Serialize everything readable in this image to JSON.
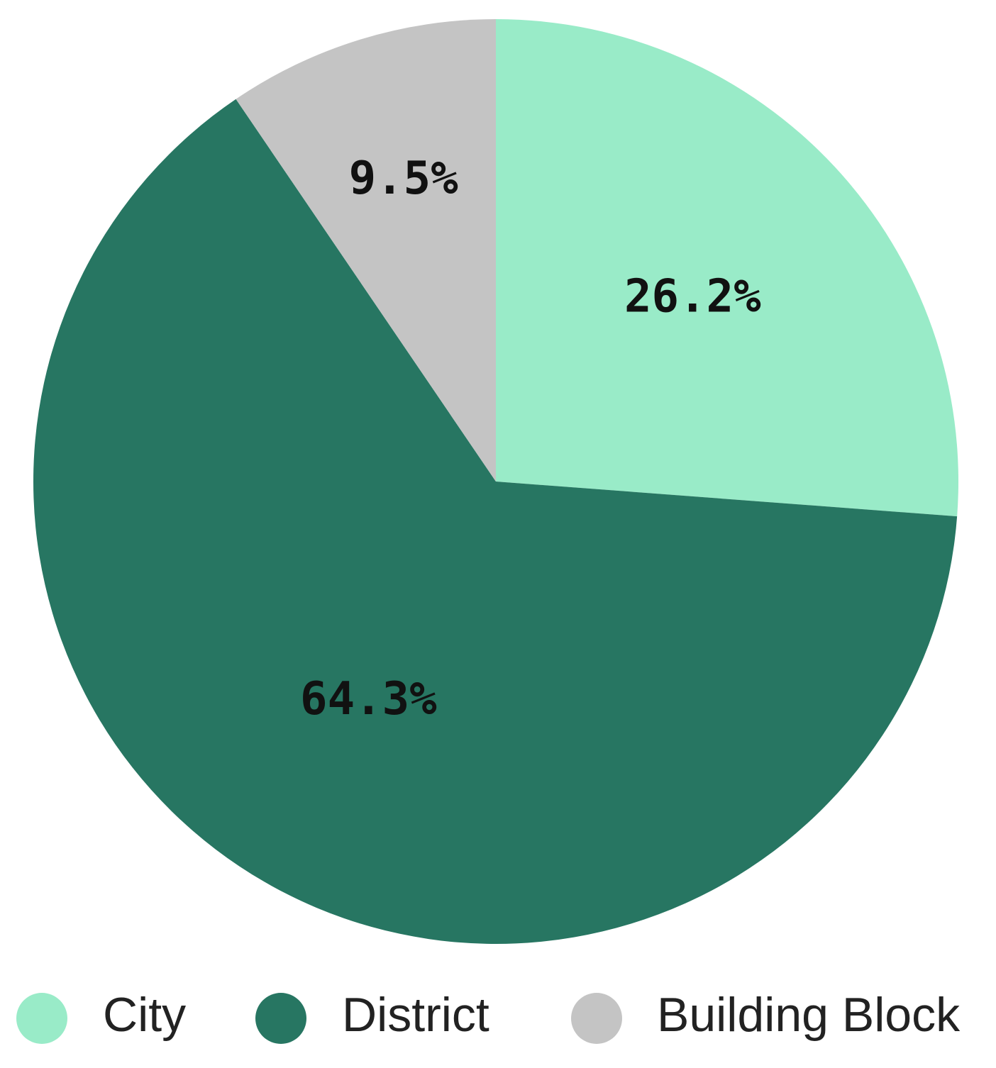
{
  "chart_data": {
    "type": "pie",
    "start": "12 o'clock",
    "direction": "clockwise",
    "slices": [
      {
        "name": "City",
        "value": 26.2,
        "label": "26.2%",
        "color": "#99ebc8"
      },
      {
        "name": "District",
        "value": 64.3,
        "label": "64.3%",
        "color": "#277662"
      },
      {
        "name": "Building Block",
        "value": 9.5,
        "label": "9.5%",
        "color": "#c4c4c4"
      }
    ],
    "legend": {
      "placement": "bottom",
      "entries": [
        "City",
        "District",
        "Building Block"
      ]
    }
  }
}
